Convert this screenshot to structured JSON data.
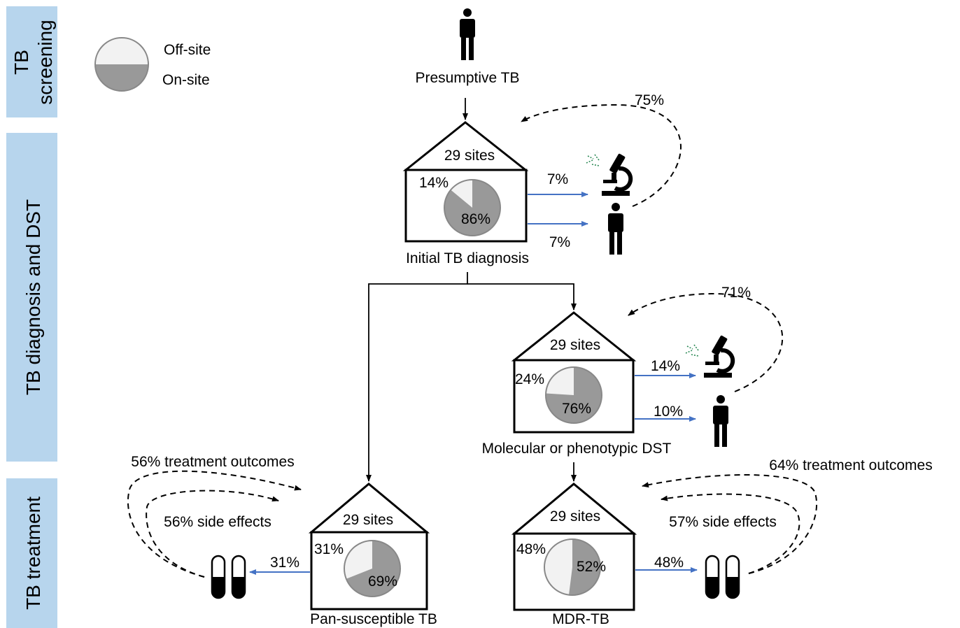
{
  "stages": {
    "screening": [
      "TB",
      "screening"
    ],
    "diagnosis": "TB diagnosis and DST",
    "treatment": "TB treatment"
  },
  "legend": {
    "off_site": "Off-site",
    "on_site": "On-site"
  },
  "colors": {
    "off_site": "#f2f2f2",
    "on_site": "#999999",
    "band": "#b7d5ed",
    "arrow_blue": "#4472c4"
  },
  "top": {
    "label": "Presumptive TB"
  },
  "nodes": {
    "initial": {
      "sites": "29 sites",
      "label": "Initial TB diagnosis",
      "off_pct": 14,
      "on_pct": 86,
      "off_label": "14%",
      "on_label": "86%",
      "lab_pct": "7%",
      "person_pct": "7%",
      "loop_pct": "75%"
    },
    "dst": {
      "sites": "29 sites",
      "label": "Molecular or phenotypic DST",
      "off_pct": 24,
      "on_pct": 76,
      "off_label": "24%",
      "on_label": "76%",
      "lab_pct": "14%",
      "person_pct": "10%",
      "loop_pct": "71%"
    },
    "pan": {
      "sites": "29 sites",
      "label": "Pan-susceptible TB",
      "off_pct": 31,
      "on_pct": 69,
      "off_label": "31%",
      "on_label": "69%",
      "pill_pct": "31%",
      "outcomes": "56% treatment outcomes",
      "side_effects": "56% side effects"
    },
    "mdr": {
      "sites": "29 sites",
      "label": "MDR-TB",
      "off_pct": 48,
      "on_pct": 52,
      "off_label": "48%",
      "on_label": "52%",
      "pill_pct": "48%",
      "outcomes": "64% treatment outcomes",
      "side_effects": "57% side effects"
    }
  },
  "icons": [
    "person-icon",
    "microscope-icon",
    "bacteria-icon",
    "pill-capsule-icon",
    "pie-chart"
  ]
}
